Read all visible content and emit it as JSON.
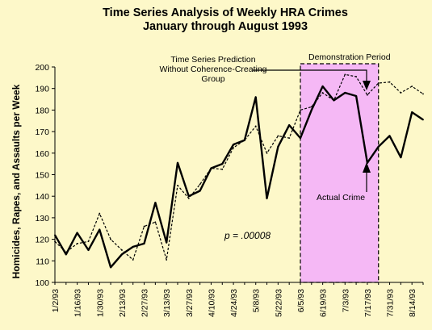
{
  "chart_data": {
    "type": "line",
    "title": "Time Series Analysis of Weekly HRA Crimes",
    "subtitle": "January through August 1993",
    "xlabel": "",
    "ylabel": "Homicides, Rapes, and Assaults per Week",
    "ylim": [
      100,
      200
    ],
    "yticks": [
      100,
      110,
      120,
      130,
      140,
      150,
      160,
      170,
      180,
      190,
      200
    ],
    "x_tick_labels": [
      "1/2/93",
      "1/16/93",
      "1/30/93",
      "2/13/93",
      "2/27/93",
      "3/13/93",
      "3/27/93",
      "4/10/93",
      "4/24/93",
      "5/8/93",
      "5/22/93",
      "6/5/93",
      "6/19/93",
      "7/3/93",
      "7/17/93",
      "7/31/93",
      "8/14/93"
    ],
    "x": [
      "1/2/93",
      "1/9/93",
      "1/16/93",
      "1/23/93",
      "1/30/93",
      "2/6/93",
      "2/13/93",
      "2/20/93",
      "2/27/93",
      "3/6/93",
      "3/13/93",
      "3/20/93",
      "3/27/93",
      "4/3/93",
      "4/10/93",
      "4/17/93",
      "4/24/93",
      "5/1/93",
      "5/8/93",
      "5/15/93",
      "5/22/93",
      "5/29/93",
      "6/5/93",
      "6/12/93",
      "6/19/93",
      "6/26/93",
      "7/3/93",
      "7/10/93",
      "7/17/93",
      "7/24/93",
      "7/31/93",
      "8/7/93",
      "8/14/93",
      "8/21/93"
    ],
    "grid": false,
    "series": [
      {
        "name": "Actual Crime",
        "style": "solid",
        "color": "#000000",
        "values": [
          122,
          113,
          123,
          115,
          124.5,
          107,
          113,
          116.5,
          118,
          137,
          118.5,
          155.5,
          140,
          142.5,
          153,
          155,
          164,
          166,
          186,
          139,
          163,
          173,
          167,
          180,
          191,
          184.5,
          188,
          186.5,
          155.5,
          163,
          168,
          158,
          179,
          175.5
        ]
      },
      {
        "name": "Time Series Prediction Without Coherence-Creating Group",
        "style": "dashed",
        "color": "#000000",
        "values": [
          119,
          114,
          118,
          119,
          132,
          120,
          115,
          110.5,
          126,
          128,
          110.5,
          145,
          139,
          145.5,
          153,
          152.5,
          162.5,
          166,
          172.5,
          160,
          168,
          167,
          180,
          181.5,
          188,
          184.5,
          196.5,
          195.5,
          187,
          192.5,
          193,
          188,
          191,
          187.5
        ]
      }
    ],
    "highlight_band": {
      "label": "Demonstration Period",
      "from": "6/5/93",
      "to": "7/24/93",
      "color": "#f5b8f5"
    },
    "annotations": [
      "Time Series Prediction",
      "Without Coherence-Creating",
      "Group",
      "Demonstration Period",
      "Actual Crime",
      "p = .00008"
    ]
  }
}
